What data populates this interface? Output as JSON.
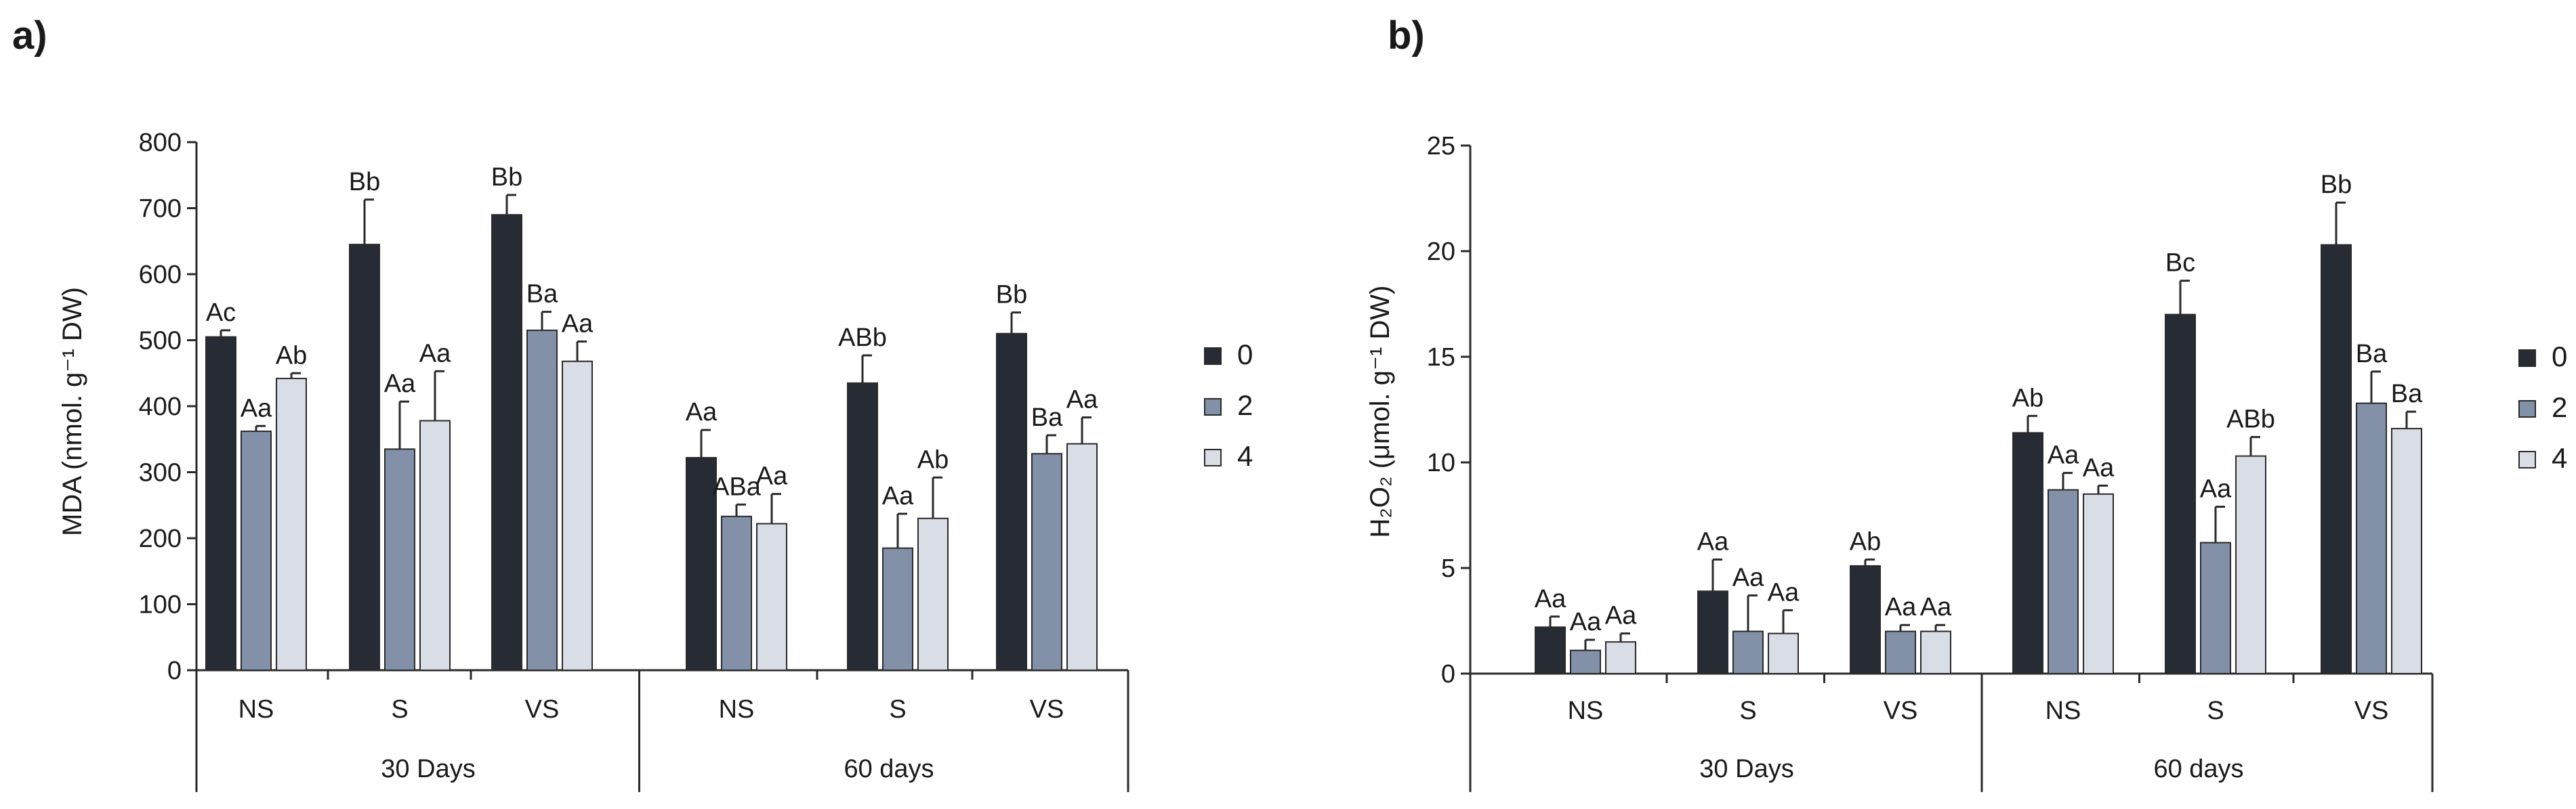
{
  "colors": {
    "0": "#272b34",
    "2": "#8290a8",
    "4": "#d9dde6",
    "stroke": "#2a2a2a"
  },
  "chart_data": [
    {
      "panel": "a)",
      "type": "bar",
      "ylabel": "MDA (nmol. g⁻¹ DW)",
      "ylim": [
        0,
        800
      ],
      "yticks": [
        "0",
        "100",
        "200",
        "300",
        "400",
        "500",
        "600",
        "700",
        "800"
      ],
      "categories": [
        "NS",
        "S",
        "VS",
        "NS",
        "S",
        "VS"
      ],
      "groups": [
        "30 Days",
        "60 days"
      ],
      "series": [
        {
          "name": "0",
          "values": [
            505,
            645,
            690,
            322,
            435,
            510
          ],
          "errors": [
            10,
            68,
            30,
            42,
            42,
            32
          ]
        },
        {
          "name": "2",
          "values": [
            362,
            335,
            515,
            233,
            185,
            328
          ],
          "errors": [
            8,
            72,
            28,
            18,
            52,
            28
          ]
        },
        {
          "name": "4",
          "values": [
            442,
            378,
            468,
            222,
            230,
            343
          ],
          "errors": [
            8,
            75,
            30,
            45,
            62,
            40
          ]
        }
      ],
      "annotations": [
        [
          "Ac",
          "Bb",
          "Bb",
          "Aa",
          "ABb",
          "Bb"
        ],
        [
          "Aa",
          "Aa",
          "Ba",
          "ABa",
          "Aa",
          "Ba"
        ],
        [
          "Ab",
          "Aa",
          "Aa",
          "Aa",
          "Ab",
          "Aa"
        ]
      ],
      "legend": [
        "0",
        "2",
        "4"
      ],
      "legend_position": "right"
    },
    {
      "panel": "b)",
      "type": "bar",
      "ylabel": "H₂O₂ (μmol. g⁻¹ DW)",
      "ylim": [
        0,
        25
      ],
      "yticks": [
        "0",
        "5",
        "10",
        "15",
        "20",
        "25"
      ],
      "categories": [
        "NS",
        "S",
        "VS",
        "NS",
        "S",
        "VS"
      ],
      "groups": [
        "30 Days",
        "60 days"
      ],
      "series": [
        {
          "name": "0",
          "values": [
            2.2,
            3.9,
            5.1,
            11.4,
            17.0,
            20.3
          ],
          "errors": [
            0.5,
            1.5,
            0.3,
            0.8,
            1.6,
            2.0
          ]
        },
        {
          "name": "2",
          "values": [
            1.1,
            2.0,
            2.0,
            8.7,
            6.2,
            12.8
          ],
          "errors": [
            0.5,
            1.7,
            0.3,
            0.8,
            1.7,
            1.5
          ]
        },
        {
          "name": "4",
          "values": [
            1.5,
            1.9,
            2.0,
            8.5,
            10.3,
            11.6
          ],
          "errors": [
            0.4,
            1.1,
            0.3,
            0.4,
            0.9,
            0.8
          ]
        }
      ],
      "annotations": [
        [
          "Aa",
          "Aa",
          "Ab",
          "Ab",
          "Bc",
          "Bb"
        ],
        [
          "Aa",
          "Aa",
          "Aa",
          "Aa",
          "Aa",
          "Ba"
        ],
        [
          "Aa",
          "Aa",
          "Aa",
          "Aa",
          "ABb",
          "Ba"
        ]
      ],
      "legend": [
        "0",
        "2",
        "4"
      ],
      "legend_position": "right"
    }
  ]
}
